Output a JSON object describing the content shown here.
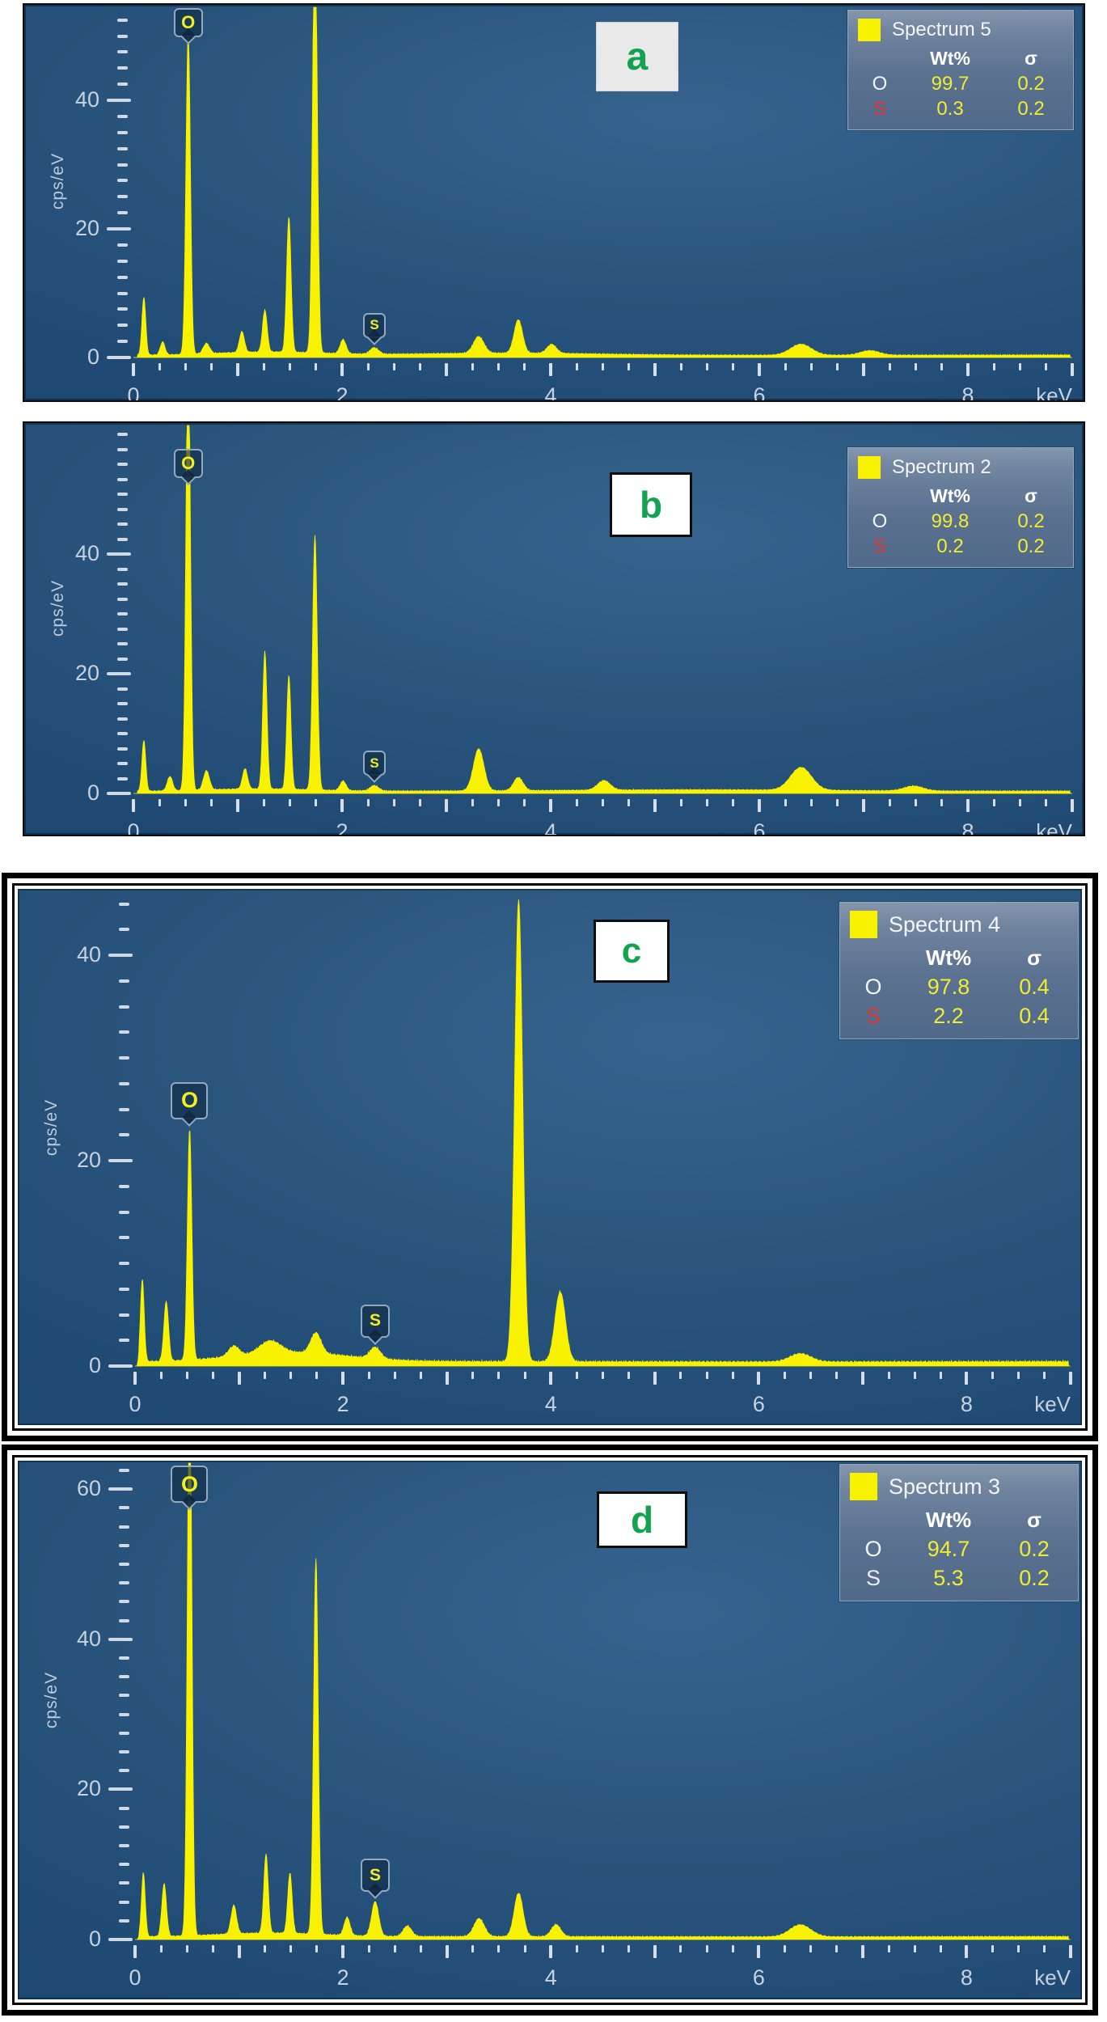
{
  "chart_data": [
    {
      "type": "area",
      "panel_letter": "a",
      "title": "Spectrum 5",
      "xlabel": "keV",
      "ylabel": "cps/eV",
      "xlim": [
        0,
        9
      ],
      "ylim": [
        0,
        55
      ],
      "x_major_labels": [
        0,
        2,
        4,
        6,
        8
      ],
      "y_major_labels": [
        0,
        20,
        40
      ],
      "x_minor_step": 0.25,
      "y_minor_step": 2.5,
      "series_color": "#f8f200",
      "legend": {
        "wt_header": "Wt%",
        "sigma_header": "σ",
        "rows": [
          {
            "element": "O",
            "wt": "99.7",
            "sigma": "0.2",
            "symbol_color": "#f2f5f8"
          },
          {
            "element": "S",
            "wt": "0.3",
            "sigma": "0.2",
            "symbol_color": "#e03531"
          }
        ]
      },
      "markers": [
        {
          "element": "O",
          "keV": 0.525,
          "placement": "top"
        },
        {
          "element": "S",
          "keV": 2.31,
          "placement": "above-peak"
        }
      ],
      "peaks": [
        [
          0.1,
          9.0,
          0.018
        ],
        [
          0.28,
          2.0,
          0.022
        ],
        [
          0.525,
          50.0,
          0.021
        ],
        [
          0.7,
          1.6,
          0.03
        ],
        [
          1.04,
          3.2,
          0.024
        ],
        [
          1.26,
          6.5,
          0.022
        ],
        [
          1.49,
          21.0,
          0.021
        ],
        [
          1.74,
          68.0,
          0.022
        ],
        [
          2.01,
          2.2,
          0.028
        ],
        [
          2.31,
          1.0,
          0.04
        ],
        [
          3.31,
          2.6,
          0.05
        ],
        [
          3.69,
          5.2,
          0.04
        ],
        [
          4.01,
          1.4,
          0.045
        ],
        [
          6.4,
          1.7,
          0.1
        ],
        [
          7.06,
          0.7,
          0.09
        ]
      ],
      "background": {
        "constant": 0.3,
        "humps": [
          [
            1.3,
            0.5,
            0.5
          ],
          [
            3.6,
            0.3,
            0.8
          ]
        ]
      }
    },
    {
      "type": "area",
      "panel_letter": "b",
      "title": "Spectrum 2",
      "xlabel": "keV",
      "ylabel": "cps/eV",
      "xlim": [
        0,
        9
      ],
      "ylim": [
        0,
        62
      ],
      "x_major_labels": [
        0,
        2,
        4,
        6,
        8
      ],
      "y_major_labels": [
        0,
        20,
        40
      ],
      "x_minor_step": 0.25,
      "y_minor_step": 2.5,
      "series_color": "#f8f200",
      "legend": {
        "wt_header": "Wt%",
        "sigma_header": "σ",
        "rows": [
          {
            "element": "O",
            "wt": "99.8",
            "sigma": "0.2",
            "symbol_color": "#f2f5f8"
          },
          {
            "element": "S",
            "wt": "0.2",
            "sigma": "0.2",
            "symbol_color": "#e03531"
          }
        ]
      },
      "markers": [
        {
          "element": "O",
          "keV": 0.525,
          "placement": "top"
        },
        {
          "element": "S",
          "keV": 2.31,
          "placement": "above-peak"
        }
      ],
      "peaks": [
        [
          0.1,
          8.5,
          0.018
        ],
        [
          0.35,
          2.4,
          0.025
        ],
        [
          0.525,
          75.0,
          0.021
        ],
        [
          0.7,
          3.2,
          0.028
        ],
        [
          1.07,
          3.4,
          0.024
        ],
        [
          1.26,
          23.0,
          0.02
        ],
        [
          1.49,
          19.0,
          0.02
        ],
        [
          1.74,
          42.5,
          0.022
        ],
        [
          2.01,
          1.6,
          0.028
        ],
        [
          2.31,
          0.9,
          0.04
        ],
        [
          3.31,
          7.0,
          0.05
        ],
        [
          3.69,
          2.2,
          0.045
        ],
        [
          4.51,
          1.6,
          0.06
        ],
        [
          6.4,
          3.8,
          0.1
        ],
        [
          7.48,
          0.8,
          0.09
        ]
      ],
      "background": {
        "constant": 0.3,
        "humps": [
          [
            1.2,
            0.4,
            0.5
          ],
          [
            5.5,
            0.25,
            1.2
          ]
        ]
      }
    },
    {
      "type": "area",
      "panel_letter": "c",
      "title": "Spectrum 4",
      "xlabel": "keV",
      "ylabel": "cps/eV",
      "xlim": [
        0,
        9
      ],
      "ylim": [
        0,
        46
      ],
      "x_major_labels": [
        0,
        2,
        4,
        6,
        8
      ],
      "y_major_labels": [
        0,
        20,
        40
      ],
      "x_minor_step": 0.25,
      "y_minor_step": 2.5,
      "series_color": "#f8f200",
      "legend": {
        "wt_header": "Wt%",
        "sigma_header": "σ",
        "rows": [
          {
            "element": "O",
            "wt": "97.8",
            "sigma": "0.4",
            "symbol_color": "#f2f5f8"
          },
          {
            "element": "S",
            "wt": "2.2",
            "sigma": "0.4",
            "symbol_color": "#e03531"
          }
        ]
      },
      "markers": [
        {
          "element": "O",
          "keV": 0.525,
          "placement": "above-peak"
        },
        {
          "element": "S",
          "keV": 2.31,
          "placement": "above-peak"
        }
      ],
      "peaks": [
        [
          0.07,
          8.0,
          0.018
        ],
        [
          0.3,
          5.8,
          0.022
        ],
        [
          0.525,
          22.5,
          0.021
        ],
        [
          0.95,
          1.0,
          0.05
        ],
        [
          1.3,
          1.2,
          0.1
        ],
        [
          1.74,
          2.0,
          0.05
        ],
        [
          2.31,
          1.1,
          0.05
        ],
        [
          3.69,
          45.0,
          0.038
        ],
        [
          4.09,
          6.8,
          0.05
        ],
        [
          6.4,
          0.8,
          0.1
        ]
      ],
      "background": {
        "constant": 0.35,
        "humps": [
          [
            1.5,
            0.9,
            0.55
          ]
        ]
      }
    },
    {
      "type": "area",
      "panel_letter": "d",
      "title": "Spectrum 3",
      "xlabel": "keV",
      "ylabel": "cps/eV",
      "xlim": [
        0,
        9
      ],
      "ylim": [
        0,
        64
      ],
      "x_major_labels": [
        0,
        2,
        4,
        6,
        8
      ],
      "y_major_labels": [
        0,
        20,
        40,
        60
      ],
      "x_minor_step": 0.25,
      "y_minor_step": 2.5,
      "series_color": "#f8f200",
      "legend": {
        "wt_header": "Wt%",
        "sigma_header": "σ",
        "rows": [
          {
            "element": "O",
            "wt": "94.7",
            "sigma": "0.2",
            "symbol_color": "#f2f5f8"
          },
          {
            "element": "S",
            "wt": "5.3",
            "sigma": "0.2",
            "symbol_color": "#e8edf2"
          }
        ]
      },
      "markers": [
        {
          "element": "O",
          "keV": 0.525,
          "placement": "top"
        },
        {
          "element": "S",
          "keV": 2.31,
          "placement": "above-peak"
        }
      ],
      "peaks": [
        [
          0.08,
          8.5,
          0.018
        ],
        [
          0.28,
          7.0,
          0.022
        ],
        [
          0.525,
          78.0,
          0.021
        ],
        [
          0.95,
          3.8,
          0.026
        ],
        [
          1.26,
          10.5,
          0.021
        ],
        [
          1.49,
          8.0,
          0.021
        ],
        [
          1.74,
          50.0,
          0.022
        ],
        [
          2.04,
          2.4,
          0.028
        ],
        [
          2.31,
          4.6,
          0.034
        ],
        [
          2.62,
          1.4,
          0.04
        ],
        [
          3.31,
          2.4,
          0.05
        ],
        [
          3.69,
          5.8,
          0.042
        ],
        [
          4.05,
          1.6,
          0.045
        ],
        [
          6.4,
          1.6,
          0.1
        ]
      ],
      "background": {
        "constant": 0.3,
        "humps": [
          [
            1.3,
            0.5,
            0.5
          ]
        ]
      }
    }
  ]
}
